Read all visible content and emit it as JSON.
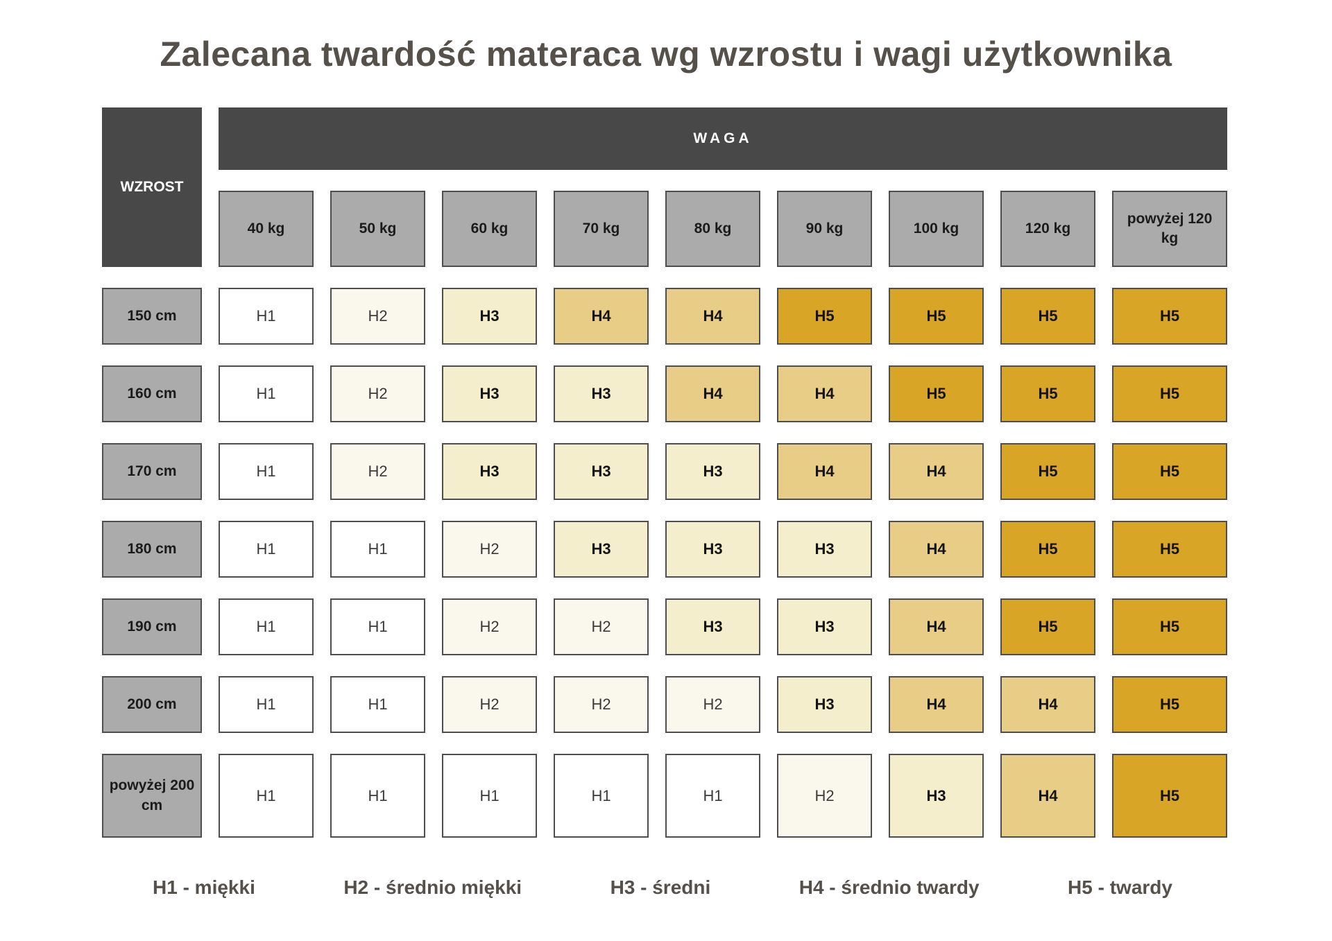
{
  "title": "Zalecana twardość materaca wg wzrostu i wagi użytkownika",
  "chart_data": {
    "type": "heatmap",
    "title": "Zalecana twardość materaca wg wzrostu i wagi użytkownika",
    "xlabel": "WAGA",
    "ylabel": "WZROST",
    "x_categories": [
      "40 kg",
      "50 kg",
      "60 kg",
      "70 kg",
      "80 kg",
      "90 kg",
      "100 kg",
      "120 kg",
      "powyżej 120 kg"
    ],
    "y_categories": [
      "150 cm",
      "160 cm",
      "170 cm",
      "180 cm",
      "190 cm",
      "200 cm",
      "powyżej 200 cm"
    ],
    "values": [
      [
        "H1",
        "H2",
        "H3",
        "H4",
        "H4",
        "H5",
        "H5",
        "H5",
        "H5"
      ],
      [
        "H1",
        "H2",
        "H3",
        "H3",
        "H4",
        "H4",
        "H5",
        "H5",
        "H5"
      ],
      [
        "H1",
        "H2",
        "H3",
        "H3",
        "H3",
        "H4",
        "H4",
        "H5",
        "H5"
      ],
      [
        "H1",
        "H1",
        "H2",
        "H3",
        "H3",
        "H3",
        "H4",
        "H5",
        "H5"
      ],
      [
        "H1",
        "H1",
        "H2",
        "H2",
        "H3",
        "H3",
        "H4",
        "H5",
        "H5"
      ],
      [
        "H1",
        "H1",
        "H2",
        "H2",
        "H2",
        "H3",
        "H4",
        "H4",
        "H5"
      ],
      [
        "H1",
        "H1",
        "H1",
        "H1",
        "H1",
        "H2",
        "H3",
        "H4",
        "H5"
      ]
    ],
    "legend": [
      "H1 - miękki",
      "H2 - średnio miękki",
      "H3 - średni",
      "H4 - średnio twardy",
      "H5 - twardy"
    ],
    "legend_position": "bottom",
    "grid": false
  },
  "colors": {
    "H1": "#FFFFFF",
    "H2": "#FAF8EC",
    "H3": "#F5EECC",
    "H4": "#E8CD86",
    "H5": "#D9A526",
    "header_dark": "#484848",
    "header_gray": "#ABABAB",
    "cell_border": "#4E4E4E",
    "title_text": "#56504A"
  }
}
